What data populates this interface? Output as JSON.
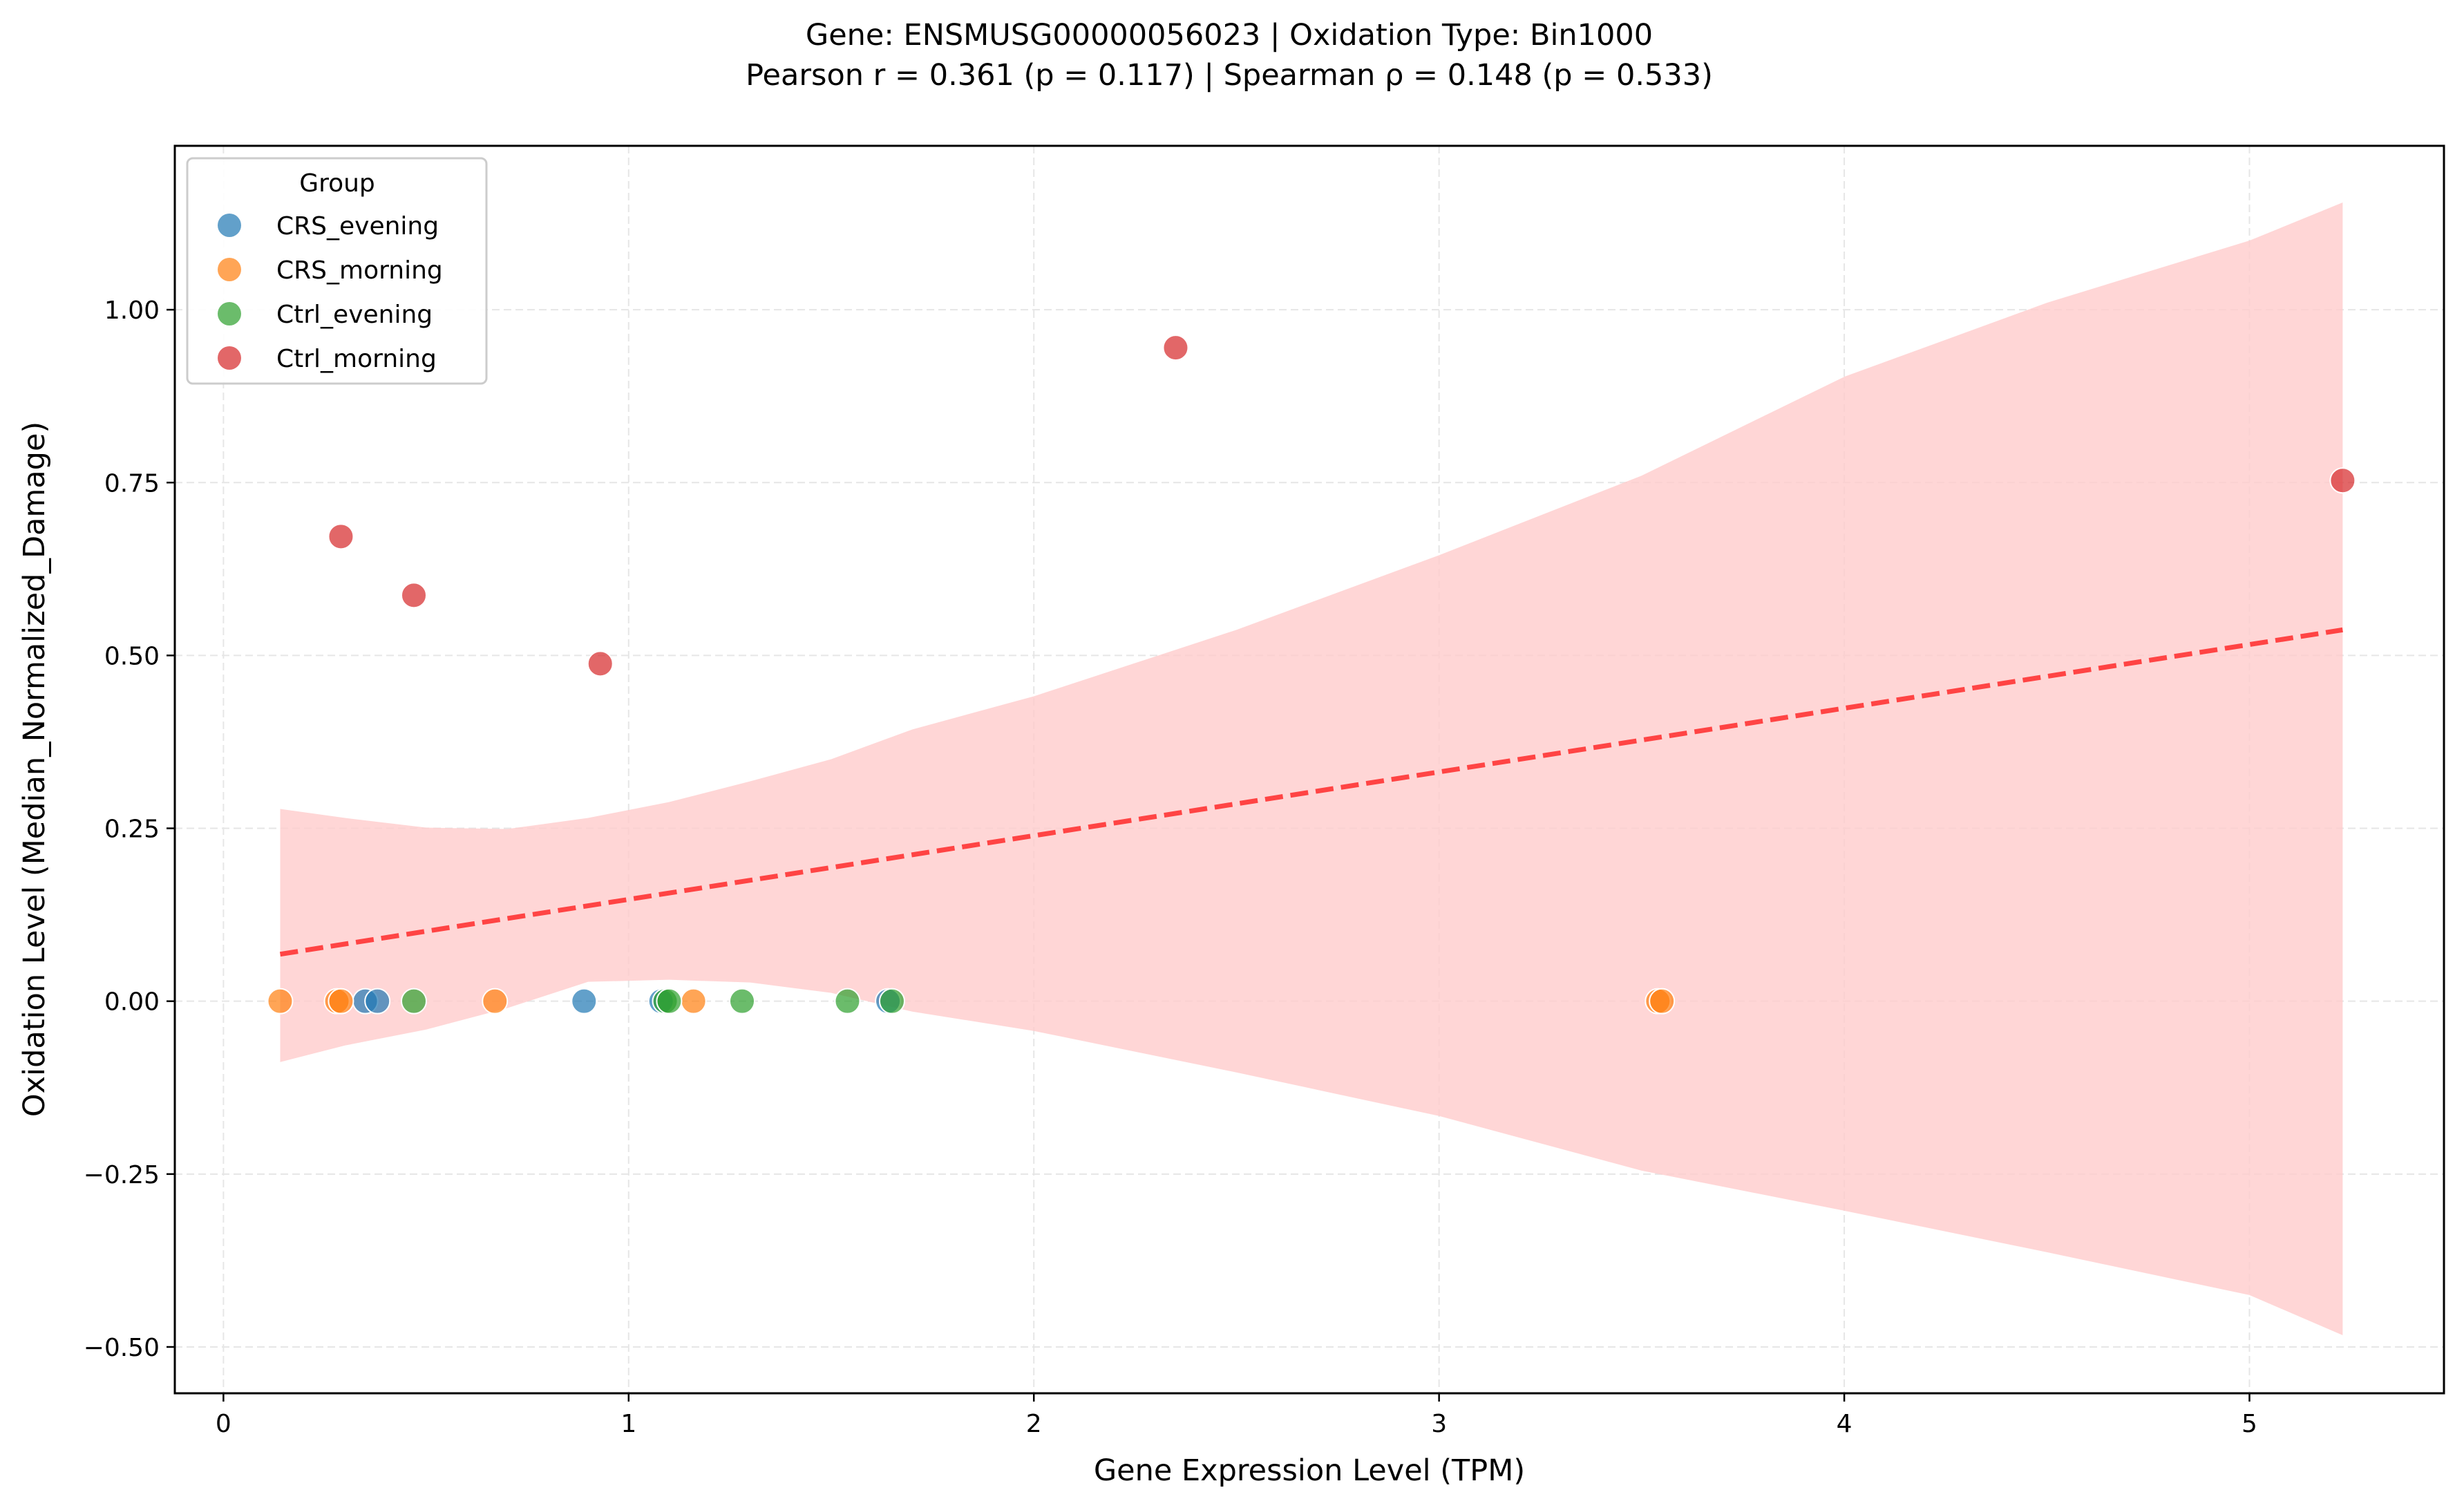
{
  "chart_data": {
    "type": "scatter",
    "title": "Gene: ENSMUSG00000056023 | Oxidation Type: Bin1000",
    "subtitle": "Pearson r = 0.361 (p = 0.117) | Spearman ρ = 0.148 (p = 0.533)",
    "xlabel": "Gene Expression Level (TPM)",
    "ylabel": "Oxidation Level (Median_Normalized_Damage)",
    "xlim": [
      -0.12,
      5.48
    ],
    "ylim": [
      -0.567,
      1.237
    ],
    "x_ticks": [
      {
        "value": 0,
        "label": "0"
      },
      {
        "value": 1,
        "label": "1"
      },
      {
        "value": 2,
        "label": "2"
      },
      {
        "value": 3,
        "label": "3"
      },
      {
        "value": 4,
        "label": "4"
      },
      {
        "value": 5,
        "label": "5"
      }
    ],
    "y_ticks": [
      {
        "value": -0.5,
        "label": "−0.50"
      },
      {
        "value": -0.25,
        "label": "−0.25"
      },
      {
        "value": 0,
        "label": "0.00"
      },
      {
        "value": 0.25,
        "label": "0.25"
      },
      {
        "value": 0.5,
        "label": "0.50"
      },
      {
        "value": 0.75,
        "label": "0.75"
      },
      {
        "value": 1.0,
        "label": "1.00"
      }
    ],
    "grid": true,
    "legend": {
      "title": "Group",
      "position": "top-left"
    },
    "series": [
      {
        "name": "CRS_evening",
        "color": "#1f77b4",
        "points": [
          [
            0.35,
            0.0
          ],
          [
            0.38,
            0.0
          ],
          [
            0.89,
            0.0
          ],
          [
            1.08,
            0.0
          ],
          [
            1.64,
            0.0
          ]
        ]
      },
      {
        "name": "CRS_morning",
        "color": "#ff7f0e",
        "points": [
          [
            0.14,
            0.0
          ],
          [
            0.28,
            0.0
          ],
          [
            0.29,
            0.0
          ],
          [
            0.67,
            0.0
          ],
          [
            1.16,
            0.0
          ],
          [
            3.54,
            0.0
          ],
          [
            3.55,
            0.0
          ]
        ]
      },
      {
        "name": "Ctrl_evening",
        "color": "#2ca02c",
        "points": [
          [
            0.47,
            0.0
          ],
          [
            1.09,
            0.0
          ],
          [
            1.1,
            0.0
          ],
          [
            1.28,
            0.0
          ],
          [
            1.54,
            0.0
          ],
          [
            1.65,
            0.0
          ]
        ]
      },
      {
        "name": "Ctrl_morning",
        "color": "#d62728",
        "points": [
          [
            0.29,
            0.672
          ],
          [
            0.47,
            0.587
          ],
          [
            0.93,
            0.488
          ],
          [
            2.35,
            0.945
          ],
          [
            5.23,
            0.753
          ]
        ]
      }
    ],
    "regression": {
      "color": "#ff4444",
      "start": [
        0.14,
        0.068
      ],
      "end": [
        5.23,
        0.537
      ],
      "band_color": "#ffcccc",
      "band_upper": [
        [
          0.14,
          0.278
        ],
        [
          0.3,
          0.265
        ],
        [
          0.5,
          0.251
        ],
        [
          0.7,
          0.249
        ],
        [
          0.9,
          0.265
        ],
        [
          1.1,
          0.288
        ],
        [
          1.3,
          0.318
        ],
        [
          1.5,
          0.35
        ],
        [
          1.7,
          0.393
        ],
        [
          2.0,
          0.441
        ],
        [
          2.5,
          0.537
        ],
        [
          3.0,
          0.645
        ],
        [
          3.5,
          0.76
        ],
        [
          4.0,
          0.903
        ],
        [
          4.5,
          1.01
        ],
        [
          5.0,
          1.1
        ],
        [
          5.23,
          1.155
        ]
      ],
      "band_lower": [
        [
          0.14,
          -0.088
        ],
        [
          0.3,
          -0.064
        ],
        [
          0.5,
          -0.041
        ],
        [
          0.7,
          -0.01
        ],
        [
          0.9,
          0.028
        ],
        [
          1.1,
          0.031
        ],
        [
          1.3,
          0.027
        ],
        [
          1.5,
          0.012
        ],
        [
          1.7,
          -0.015
        ],
        [
          2.0,
          -0.043
        ],
        [
          2.5,
          -0.103
        ],
        [
          3.0,
          -0.166
        ],
        [
          3.5,
          -0.245
        ],
        [
          4.0,
          -0.303
        ],
        [
          4.5,
          -0.363
        ],
        [
          5.0,
          -0.425
        ],
        [
          5.23,
          -0.483
        ]
      ]
    }
  }
}
